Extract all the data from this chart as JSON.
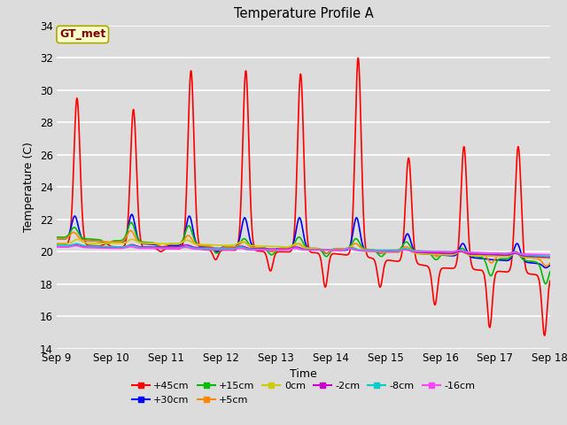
{
  "title": "Temperature Profile A",
  "xlabel": "Time",
  "ylabel": "Temperature (C)",
  "ylim": [
    14,
    34
  ],
  "yticks": [
    14,
    16,
    18,
    20,
    22,
    24,
    26,
    28,
    30,
    32,
    34
  ],
  "bg_color": "#dcdcdc",
  "annotation_text": "GT_met",
  "annotation_box_color": "#ffffcc",
  "annotation_text_color": "#800000",
  "series": {
    "+45cm": {
      "color": "#ff0000",
      "lw": 1.2
    },
    "+30cm": {
      "color": "#0000ff",
      "lw": 1.2
    },
    "+15cm": {
      "color": "#00bb00",
      "lw": 1.2
    },
    "+5cm": {
      "color": "#ff8800",
      "lw": 1.2
    },
    "0cm": {
      "color": "#cccc00",
      "lw": 1.2
    },
    "-2cm": {
      "color": "#cc00cc",
      "lw": 1.2
    },
    "-8cm": {
      "color": "#00cccc",
      "lw": 1.2
    },
    "-16cm": {
      "color": "#ff44ff",
      "lw": 1.2
    }
  },
  "x_start": 9.0,
  "x_end": 18.0,
  "x_ticks": [
    9,
    10,
    11,
    12,
    13,
    14,
    15,
    16,
    17,
    18
  ],
  "x_tick_labels": [
    "Sep 9",
    "Sep 10",
    "Sep 11",
    "Sep 12",
    "Sep 13",
    "Sep 14",
    "Sep 15",
    "Sep 16",
    "Sep 17",
    "Sep 18"
  ]
}
